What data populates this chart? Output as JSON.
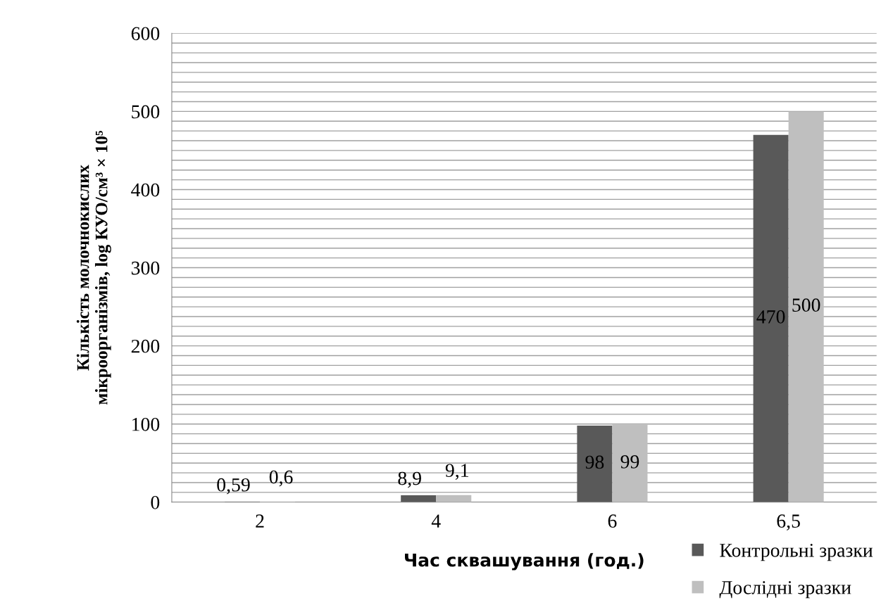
{
  "chart_data": {
    "type": "bar",
    "xlabel": "Час сквашування (год.)",
    "ylabel": "Кількість молочнокислих\nмікроорганізмів, log КУО/см³ × 10⁵",
    "categories": [
      "2",
      "4",
      "6",
      "6,5"
    ],
    "series": [
      {
        "name": "Контрольні зразки",
        "color": "#595959",
        "values": [
          0.59,
          8.9,
          98,
          470
        ],
        "value_labels": [
          "0,59",
          "8,9",
          "98",
          "470"
        ]
      },
      {
        "name": "Дослідні зразки",
        "color": "#bfbfbf",
        "values": [
          0.6,
          9.1,
          99,
          500
        ],
        "value_labels": [
          "0,6",
          "9,1",
          "99",
          "500"
        ]
      }
    ],
    "ylim": [
      0,
      600
    ],
    "yticks": [
      0,
      {
        "value": 12.5,
        "label": null
      },
      {
        "value": 25,
        "label": null
      },
      {
        "value": 37.5,
        "label": null
      },
      {
        "value": 50,
        "label": null
      },
      {
        "value": 62.5,
        "label": null
      },
      {
        "value": 75,
        "label": null
      },
      {
        "value": 87.5,
        "label": null
      },
      100,
      {
        "value": 112.5,
        "label": null
      },
      {
        "value": 125,
        "label": null
      },
      {
        "value": 137.5,
        "label": null
      },
      {
        "value": 150,
        "label": null
      },
      {
        "value": 162.5,
        "label": null
      },
      {
        "value": 175,
        "label": null
      },
      {
        "value": 187.5,
        "label": null
      },
      200,
      {
        "value": 212.5,
        "label": null
      },
      {
        "value": 225,
        "label": null
      },
      {
        "value": 237.5,
        "label": null
      },
      {
        "value": 250,
        "label": null
      },
      {
        "value": 262.5,
        "label": null
      },
      {
        "value": 275,
        "label": null
      },
      {
        "value": 287.5,
        "label": null
      },
      300,
      {
        "value": 312.5,
        "label": null
      },
      {
        "value": 325,
        "label": null
      },
      {
        "value": 337.5,
        "label": null
      },
      {
        "value": 350,
        "label": null
      },
      {
        "value": 362.5,
        "label": null
      },
      {
        "value": 375,
        "label": null
      },
      {
        "value": 387.5,
        "label": null
      },
      400,
      {
        "value": 412.5,
        "label": null
      },
      {
        "value": 425,
        "label": null
      },
      {
        "value": 437.5,
        "label": null
      },
      {
        "value": 450,
        "label": null
      },
      {
        "value": 462.5,
        "label": null
      },
      {
        "value": 475,
        "label": null
      },
      {
        "value": 487.5,
        "label": null
      },
      500,
      {
        "value": 512.5,
        "label": null
      },
      {
        "value": 525,
        "label": null
      },
      {
        "value": 537.5,
        "label": null
      },
      {
        "value": 550,
        "label": null
      },
      {
        "value": 562.5,
        "label": null
      },
      {
        "value": 575,
        "label": null
      },
      {
        "value": 587.5,
        "label": null
      },
      600
    ],
    "grid": "y",
    "legend": "bottom right"
  }
}
